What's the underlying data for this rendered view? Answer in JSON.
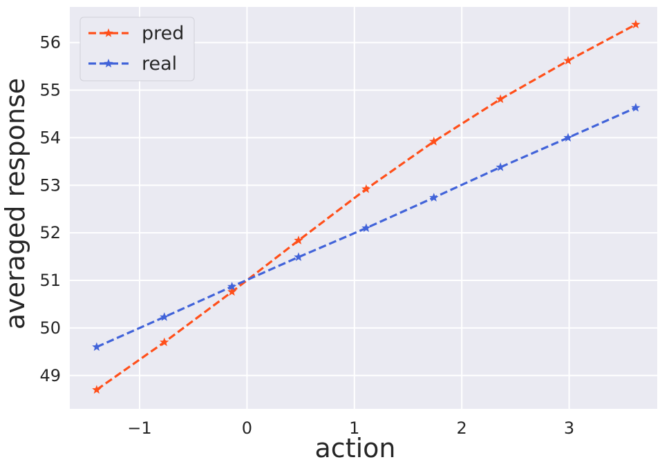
{
  "chart_data": {
    "type": "line",
    "title": "",
    "xlabel": "action",
    "ylabel": "averaged response",
    "xlim": [
      -1.65,
      3.82
    ],
    "ylim": [
      48.3,
      56.75
    ],
    "xticks": [
      -1,
      0,
      1,
      2,
      3
    ],
    "xtick_labels": [
      "−1",
      "0",
      "1",
      "2",
      "3"
    ],
    "yticks": [
      49,
      50,
      51,
      52,
      53,
      54,
      55,
      56
    ],
    "ytick_labels": [
      "49",
      "50",
      "51",
      "52",
      "53",
      "54",
      "55",
      "56"
    ],
    "grid": true,
    "legend_position": "top-left",
    "series": [
      {
        "name": "pred",
        "color": "#ff4f1a",
        "marker": "star",
        "linestyle": "dashed",
        "x": [
          -1.4,
          -0.77,
          -0.14,
          0.48,
          1.11,
          1.74,
          2.36,
          2.99,
          3.62
        ],
        "y": [
          48.7,
          49.7,
          50.76,
          51.84,
          52.92,
          53.92,
          54.81,
          55.62,
          56.38
        ]
      },
      {
        "name": "real",
        "color": "#4163d9",
        "marker": "star",
        "linestyle": "dashed",
        "x": [
          -1.4,
          -0.77,
          -0.14,
          0.48,
          1.11,
          1.74,
          2.36,
          2.99,
          3.62
        ],
        "y": [
          49.6,
          50.23,
          50.87,
          51.49,
          52.1,
          52.74,
          53.38,
          54.0,
          54.63
        ]
      }
    ]
  }
}
